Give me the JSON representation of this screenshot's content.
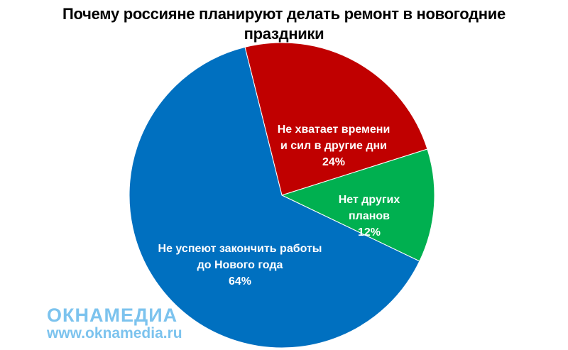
{
  "chart_data": {
    "type": "pie",
    "title_lines": [
      "Почему россияне планируют делать ремонт в новогодние",
      "праздники"
    ],
    "slices": [
      {
        "label_lines": [
          "Не хватает времени",
          "и сил в другие дни"
        ],
        "value": 24,
        "value_label": "24%",
        "color": "#c00000"
      },
      {
        "label_lines": [
          "Нет других",
          "планов"
        ],
        "value": 12,
        "value_label": "12%",
        "color": "#00b050"
      },
      {
        "label_lines": [
          "Не успеют закончить работы",
          "до Нового года"
        ],
        "value": 64,
        "value_label": "64%",
        "color": "#0070c0"
      }
    ],
    "legend": "none"
  },
  "watermark": {
    "brand": "ОКНАМЕДИА",
    "url": "www.oknamedia.ru",
    "color": "#7cc3ee"
  }
}
